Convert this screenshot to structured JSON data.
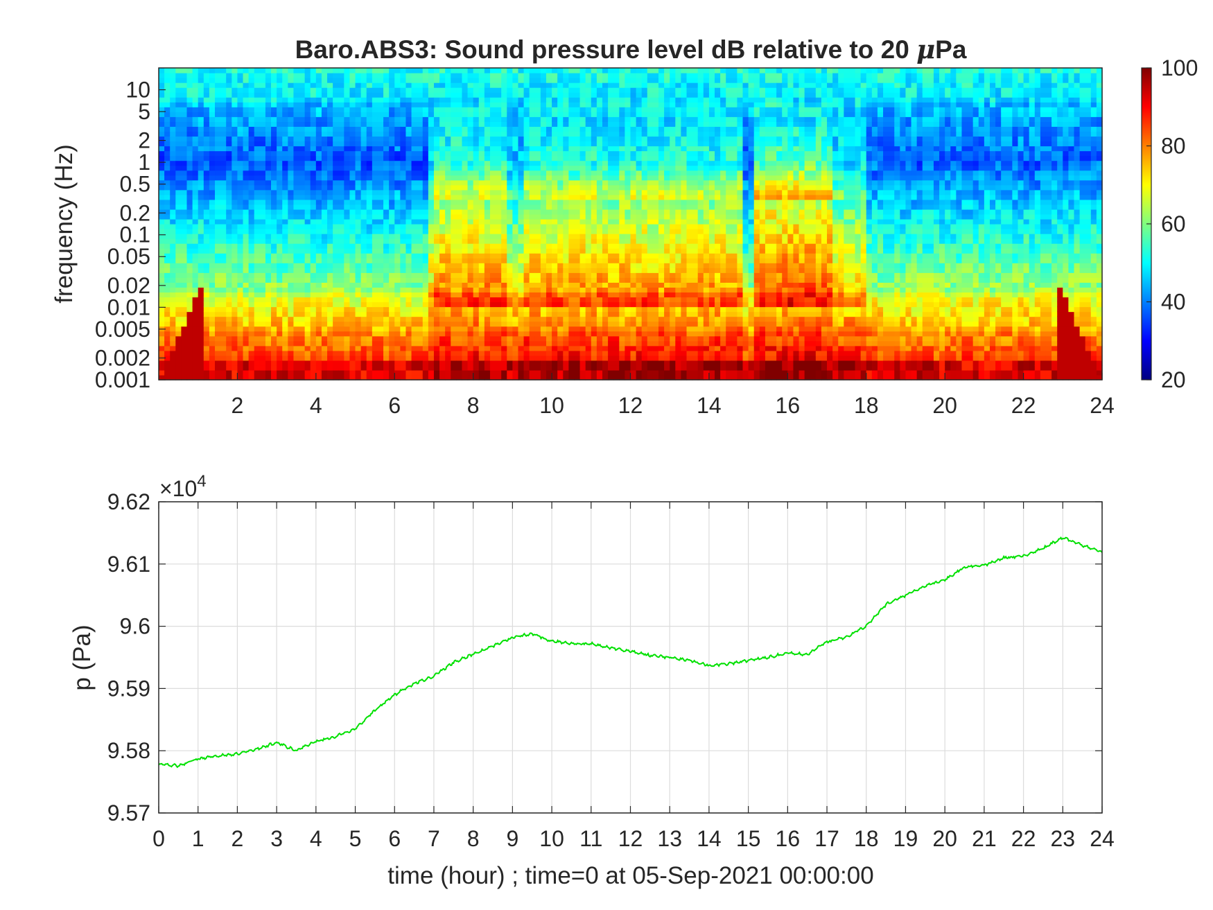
{
  "chart_data": [
    {
      "type": "heatmap",
      "title": "Baro.ABS3: Sound pressure level dB relative to 20 μPa",
      "title_prefix": "Baro.ABS3: Sound pressure level dB relative to 20 ",
      "title_mu": "μ",
      "title_suffix": "Pa",
      "xlabel": "",
      "ylabel": "frequency (Hz)",
      "xlim": [
        0,
        24
      ],
      "ylim": [
        0.001,
        20
      ],
      "yscale": "log",
      "x_ticks": [
        2,
        4,
        6,
        8,
        10,
        12,
        14,
        16,
        18,
        20,
        22,
        24
      ],
      "y_ticks": [
        {
          "value": 0.001,
          "label": "0.001"
        },
        {
          "value": 0.002,
          "label": "0.002"
        },
        {
          "value": 0.005,
          "label": "0.005"
        },
        {
          "value": 0.01,
          "label": "0.01"
        },
        {
          "value": 0.02,
          "label": "0.02"
        },
        {
          "value": 0.05,
          "label": "0.05"
        },
        {
          "value": 0.1,
          "label": "0.1"
        },
        {
          "value": 0.2,
          "label": "0.2"
        },
        {
          "value": 0.5,
          "label": "0.5"
        },
        {
          "value": 1,
          "label": "1"
        },
        {
          "value": 2,
          "label": "2"
        },
        {
          "value": 5,
          "label": "5"
        },
        {
          "value": 10,
          "label": "10"
        }
      ],
      "colormap": "jet",
      "colorbar": {
        "min": 20,
        "max": 100,
        "ticks": [
          20,
          40,
          60,
          80,
          100
        ]
      },
      "quiet_periods_hours": [
        [
          0,
          6.8
        ],
        [
          18,
          24
        ]
      ],
      "active_periods_hours": [
        [
          6.8,
          15
        ],
        [
          15.2,
          18
        ]
      ],
      "low_freq_levels_db": {
        "0.001": 90,
        "0.005": 75,
        "0.05": 65,
        "1": 35,
        "10": 48
      }
    },
    {
      "type": "line",
      "xlabel": "time (hour) ; time=0 at 05-Sep-2021 00:00:00",
      "ylabel": "p (Pa)",
      "y_exponent_label": "×10",
      "y_exponent": "4",
      "xlim": [
        0,
        24
      ],
      "ylim": [
        95700,
        96200
      ],
      "grid": true,
      "x_ticks": [
        0,
        1,
        2,
        3,
        4,
        5,
        6,
        7,
        8,
        9,
        10,
        11,
        12,
        13,
        14,
        15,
        16,
        17,
        18,
        19,
        20,
        21,
        22,
        23,
        24
      ],
      "y_ticks": [
        {
          "value": 95700,
          "label": "9.57"
        },
        {
          "value": 95800,
          "label": "9.58"
        },
        {
          "value": 95900,
          "label": "9.59"
        },
        {
          "value": 96000,
          "label": "9.6"
        },
        {
          "value": 96100,
          "label": "9.61"
        },
        {
          "value": 96200,
          "label": "9.62"
        }
      ],
      "series": [
        {
          "color": "#00e000",
          "x": [
            0,
            0.5,
            1,
            1.5,
            2,
            2.5,
            3,
            3.5,
            4,
            4.5,
            5,
            5.5,
            6,
            6.5,
            7,
            7.5,
            8,
            8.5,
            9,
            9.5,
            10,
            10.5,
            11,
            11.5,
            12,
            12.5,
            13,
            13.5,
            14,
            14.5,
            15,
            15.5,
            16,
            16.5,
            17,
            17.5,
            18,
            18.5,
            19,
            19.5,
            20,
            20.5,
            21,
            21.5,
            22,
            22.5,
            23,
            23.5,
            24
          ],
          "y": [
            95778,
            95776,
            95787,
            95792,
            95795,
            95803,
            95813,
            95800,
            95815,
            95823,
            95835,
            95865,
            95890,
            95908,
            95920,
            95942,
            95955,
            95968,
            95982,
            95988,
            95976,
            95972,
            95972,
            95965,
            95960,
            95953,
            95950,
            95945,
            95937,
            95940,
            95945,
            95950,
            95957,
            95955,
            95975,
            95983,
            96000,
            96035,
            96050,
            96065,
            96075,
            96095,
            96098,
            96110,
            96113,
            96125,
            96143,
            96130,
            96120
          ]
        }
      ]
    }
  ]
}
